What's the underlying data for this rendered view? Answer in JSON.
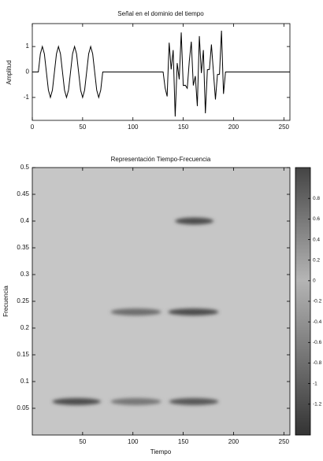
{
  "chart_data": [
    {
      "type": "line",
      "title": "Señal en el dominio del tiempo",
      "ylabel": "Amplitud",
      "x": [
        0,
        6,
        8,
        10,
        12,
        14,
        16,
        18,
        20,
        22,
        24,
        26,
        28,
        30,
        32,
        34,
        36,
        38,
        40,
        42,
        44,
        46,
        48,
        50,
        52,
        54,
        56,
        58,
        60,
        62,
        64,
        66,
        68,
        70,
        130,
        132,
        134,
        136,
        138,
        140,
        142,
        144,
        146,
        148,
        150,
        152,
        154,
        156,
        158,
        160,
        162,
        164,
        166,
        168,
        170,
        172,
        174,
        176,
        178,
        180,
        182,
        184,
        186,
        188,
        190,
        192,
        256
      ],
      "series": [
        {
          "name": "Amplitud",
          "color": "#000000",
          "values": [
            0,
            0,
            0.71,
            1,
            0.71,
            0,
            -0.71,
            -1,
            -0.71,
            0,
            0.71,
            1,
            0.71,
            0,
            -0.71,
            -1,
            -0.71,
            0,
            0.71,
            1,
            0.71,
            0,
            -0.71,
            -1,
            -0.71,
            0,
            0.71,
            1,
            0.71,
            0,
            -0.71,
            -1,
            -0.71,
            0,
            0,
            -0.63,
            -0.96,
            1.15,
            0.1,
            0.86,
            -1.75,
            0.35,
            -0.29,
            1.55,
            -0.53,
            -0.52,
            -0.64,
            0.42,
            1.19,
            -0.53,
            -0.16,
            -1.34,
            1.41,
            -0.04,
            0.86,
            -1.62,
            0.09,
            0.1,
            1.08,
            0,
            -1.08,
            -0.1,
            -0.09,
            1.62,
            -0.86,
            0,
            0
          ]
        }
      ],
      "xlim": [
        0,
        256
      ],
      "xticks": [
        0,
        50,
        100,
        150,
        200,
        250
      ],
      "ylim": [
        -1.9,
        1.9
      ],
      "yticks": [
        -1,
        0,
        1
      ]
    },
    {
      "type": "heatmap",
      "title": "Representación Tiempo-Frecuencia",
      "xlabel": "Tiempo",
      "ylabel": "Frecuencia",
      "time_ranges": [
        [
          20,
          68
        ],
        [
          78,
          128
        ],
        [
          136,
          185
        ],
        [
          78,
          128
        ],
        [
          135,
          185
        ],
        [
          142,
          180
        ]
      ],
      "frequencies": [
        0.0625,
        0.0625,
        0.0625,
        0.23,
        0.23,
        0.4
      ],
      "values": [
        1.0,
        0.6,
        0.9,
        0.7,
        1.0,
        1.0
      ],
      "xlim": [
        0,
        256
      ],
      "xticks": [
        50,
        100,
        150,
        200,
        250
      ],
      "ylim": [
        0,
        0.5
      ],
      "yticks": [
        0.05,
        0.1,
        0.15,
        0.2,
        0.25,
        0.3,
        0.35,
        0.4,
        0.45,
        0.5
      ],
      "clim": [
        -1.5,
        1.1
      ],
      "cticks": [
        0.8,
        0.6,
        0.4,
        0.2,
        0,
        -0.2,
        -0.4,
        -0.6,
        -0.8,
        -1,
        -1.2
      ]
    }
  ]
}
